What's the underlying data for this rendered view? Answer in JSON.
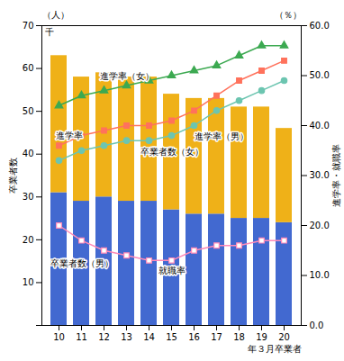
{
  "chart_data": {
    "type": "bar",
    "stacked": true,
    "categories": [
      "10",
      "11",
      "12",
      "13",
      "14",
      "15",
      "16",
      "17",
      "18",
      "19",
      "20"
    ],
    "xlabel": "年３月卒業者",
    "ylabel": "卒業者数",
    "y2label": "進学率・就職率",
    "ylim": [
      0,
      70
    ],
    "yticks": [
      {
        "value": 0,
        "label": null
      },
      10,
      20,
      30,
      40,
      50,
      60,
      70
    ],
    "y2lim": [
      0,
      60
    ],
    "y2ticks": [
      {
        "value": 0,
        "label": "0.0"
      },
      {
        "value": 10,
        "label": "10.0"
      },
      {
        "value": 20,
        "label": "20.0"
      },
      {
        "value": 30,
        "label": "30.0"
      },
      {
        "value": 40,
        "label": "40.0"
      },
      {
        "value": 50,
        "label": "50.0"
      },
      {
        "value": 60,
        "label": "60.0"
      }
    ],
    "annotations": [
      "（人）",
      "千",
      "（％）"
    ],
    "series": [
      {
        "name": "卒業者数（男）",
        "type": "bar",
        "values": [
          31,
          29,
          30,
          29,
          29,
          27,
          26,
          26,
          25,
          25,
          24
        ]
      },
      {
        "name": "卒業者数（女）",
        "type": "bar",
        "values": [
          32,
          29,
          29,
          29,
          29,
          27,
          27,
          27,
          26,
          26,
          22
        ]
      },
      {
        "name": "進学率",
        "type": "line",
        "axis": "y2",
        "marker": "square",
        "values": [
          36,
          38,
          39,
          40,
          40,
          41,
          43,
          46,
          49,
          51,
          53
        ]
      },
      {
        "name": "進学率（男）",
        "type": "line",
        "axis": "y2",
        "marker": "circle",
        "values": [
          33,
          35,
          36,
          37,
          37,
          38,
          40,
          43,
          45,
          47,
          49
        ]
      },
      {
        "name": "進学率（女）",
        "type": "line",
        "axis": "y2",
        "marker": "triangle",
        "values": [
          44,
          46,
          47,
          48,
          49,
          50,
          51,
          52,
          54,
          56,
          56
        ]
      },
      {
        "name": "就職率",
        "type": "line",
        "axis": "y2",
        "marker": "square-open",
        "values": [
          20,
          17,
          15,
          14,
          13,
          13,
          15,
          16,
          16,
          17,
          17
        ]
      }
    ]
  }
}
